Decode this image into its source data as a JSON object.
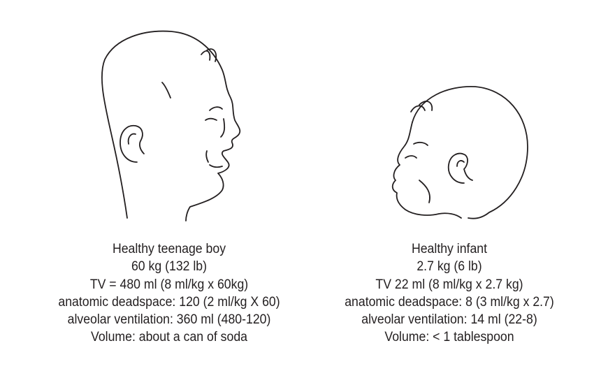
{
  "figures": [
    {
      "subject_icon": "teenage-boy-profile-drawing",
      "lines": [
        "Healthy teenage boy",
        "60 kg (132 lb)",
        "TV = 480 ml (8 ml/kg x 60kg)",
        "anatomic deadspace: 120 (2 ml/kg X 60)",
        "alveolar ventilation: 360 ml (480-120)",
        "Volume: about a can of soda"
      ]
    },
    {
      "subject_icon": "infant-profile-drawing",
      "lines": [
        "Healthy infant",
        "2.7 kg (6 lb)",
        "TV 22 ml (8 ml/kg x 2.7 kg)",
        "anatomic deadspace: 8 (3 ml/kg x 2.7)",
        "alveolar ventilation: 14 ml (22-8)",
        "Volume: < 1 tablespoon"
      ]
    }
  ],
  "colors": {
    "line": "#231f20",
    "background": "#ffffff"
  }
}
